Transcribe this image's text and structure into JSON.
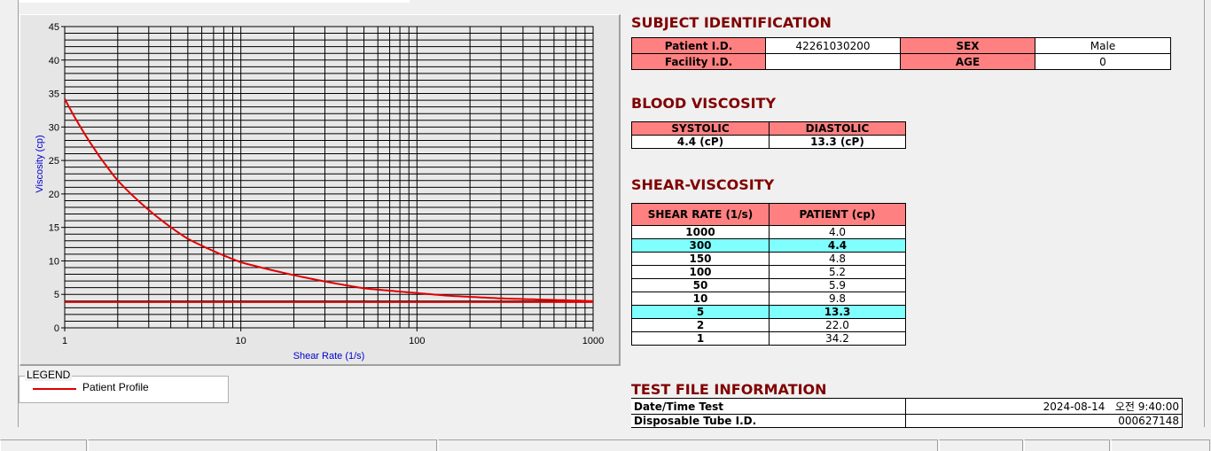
{
  "chart_data": {
    "type": "line",
    "xlabel": "Shear Rate (1/s)",
    "ylabel": "Viscosity (cp)",
    "x_scale": "log",
    "xlim": [
      1,
      1000
    ],
    "ylim": [
      0,
      45
    ],
    "grid": true,
    "x_ticks": [
      "1",
      "10",
      "100",
      "1000"
    ],
    "y_ticks": [
      "0",
      "5",
      "10",
      "15",
      "20",
      "25",
      "30",
      "35",
      "40",
      "45"
    ],
    "series": [
      {
        "name": "Patient Profile",
        "color": "#e00000",
        "x": [
          1,
          2,
          5,
          10,
          50,
          100,
          150,
          300,
          1000
        ],
        "y": [
          34.2,
          22.0,
          13.3,
          9.8,
          5.9,
          5.2,
          4.8,
          4.4,
          4.0
        ]
      },
      {
        "color": "#e00000",
        "x": [
          1,
          1000
        ],
        "y": [
          3.85,
          3.85
        ]
      }
    ]
  },
  "legend": {
    "title": "LEGEND",
    "items": [
      {
        "label": "Patient Profile",
        "color": "#e00000"
      }
    ]
  },
  "subject": {
    "title": "SUBJECT IDENTIFICATION",
    "patient_id_label": "Patient I.D.",
    "patient_id": "42261030200",
    "sex_label": "SEX",
    "sex": "Male",
    "facility_label": "Facility I.D.",
    "facility": "",
    "age_label": "AGE",
    "age": "0"
  },
  "blood": {
    "title": "BLOOD VISCOSITY",
    "systolic_label": "SYSTOLIC",
    "diastolic_label": "DIASTOLIC",
    "systolic": "4.4 (cP)",
    "diastolic": "13.3 (cP)"
  },
  "shear": {
    "title": "SHEAR-VISCOSITY",
    "col1": "SHEAR RATE (1/s)",
    "col2": "PATIENT (cp)",
    "rows": [
      {
        "rate": "1000",
        "value": "4.0",
        "hl": false
      },
      {
        "rate": "300",
        "value": "4.4",
        "hl": true
      },
      {
        "rate": "150",
        "value": "4.8",
        "hl": false
      },
      {
        "rate": "100",
        "value": "5.2",
        "hl": false
      },
      {
        "rate": "50",
        "value": "5.9",
        "hl": false
      },
      {
        "rate": "10",
        "value": "9.8",
        "hl": false
      },
      {
        "rate": "5",
        "value": "13.3",
        "hl": true
      },
      {
        "rate": "2",
        "value": "22.0",
        "hl": false
      },
      {
        "rate": "1",
        "value": "34.2",
        "hl": false
      }
    ]
  },
  "testfile": {
    "title": "TEST FILE INFORMATION",
    "datetime_label": "Date/Time Test",
    "datetime": "2024-08-14   오전 9:40:00",
    "tube_label": "Disposable Tube I.D.",
    "tube": "000627148"
  },
  "colors": {
    "header_pink": "#ff8080",
    "highlight_cyan": "#80ffff",
    "title_maroon": "#800000",
    "curve_red": "#e00000"
  }
}
